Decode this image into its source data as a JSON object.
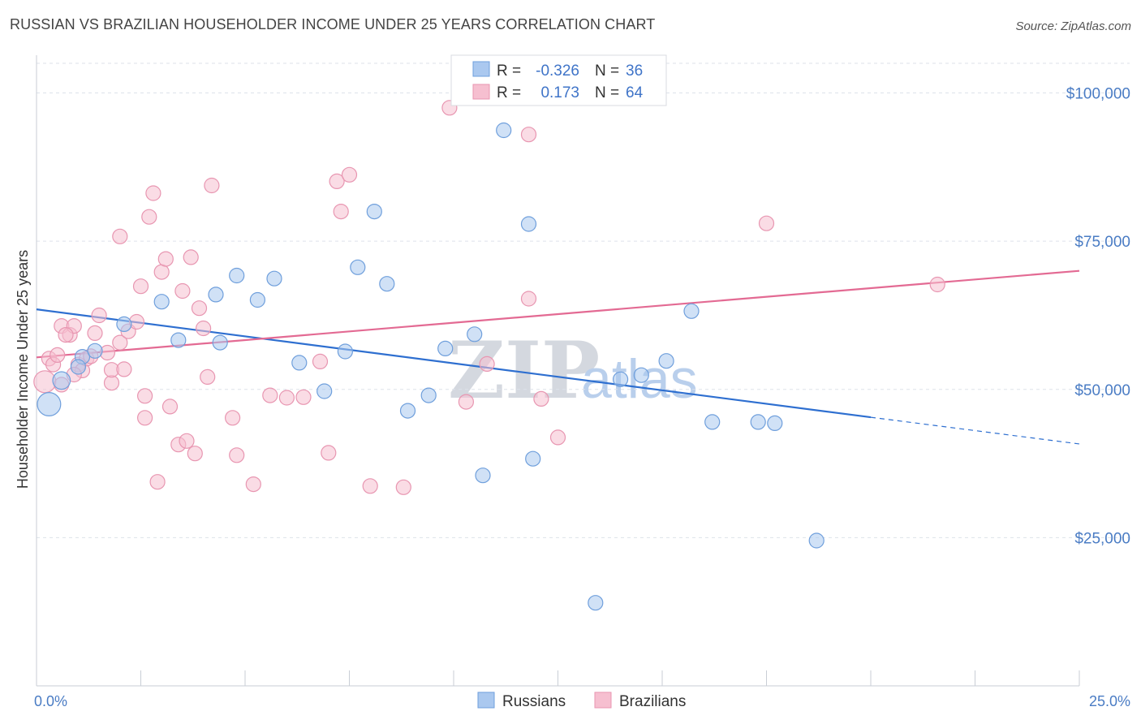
{
  "title": "RUSSIAN VS BRAZILIAN HOUSEHOLDER INCOME UNDER 25 YEARS CORRELATION CHART",
  "source": "Source: ZipAtlas.com",
  "watermark": {
    "zip": "ZIP",
    "atlas": "atlas"
  },
  "colors": {
    "russians_fill": "#aac8ef",
    "russians_stroke": "#6f9fdc",
    "russians_line": "#2e6fd0",
    "brazilians_fill": "#f6bfd0",
    "brazilians_stroke": "#e896b1",
    "brazilians_line": "#e36a93",
    "tick_label": "#4a7cc4",
    "grid": "#dde2ea"
  },
  "legend": {
    "rows": [
      {
        "r_label": "R =",
        "r_value": "-0.326",
        "n_label": "N =",
        "n_value": "36"
      },
      {
        "r_label": "R =",
        "r_value": "0.173",
        "n_label": "N =",
        "n_value": "64"
      }
    ]
  },
  "bottom_legend": [
    "Russians",
    "Brazilians"
  ],
  "chart_data": {
    "type": "scatter",
    "title": "RUSSIAN VS BRAZILIAN HOUSEHOLDER INCOME UNDER 25 YEARS CORRELATION CHART",
    "xlabel": "",
    "ylabel": "Householder Income Under 25 years",
    "xlim": [
      0,
      25
    ],
    "ylim": [
      0,
      105000
    ],
    "x_tick_labels": [
      "0.0%",
      "25.0%"
    ],
    "y_ticks": [
      25000,
      50000,
      75000,
      100000
    ],
    "y_tick_labels": [
      "$25,000",
      "$50,000",
      "$75,000",
      "$100,000"
    ],
    "grid": "horizontal dashed",
    "series": [
      {
        "name": "Russians",
        "r": -0.326,
        "n": 36,
        "trend": {
          "x0": 0,
          "y0": 63500,
          "x1": 20,
          "y1": 45300,
          "dash_to_x": 25,
          "dash_to_y": 40800
        },
        "points": [
          [
            0.3,
            47500,
            1.6
          ],
          [
            0.6,
            51500,
            1.2
          ],
          [
            1.1,
            55500,
            1.0
          ],
          [
            2.1,
            61000,
            1.0
          ],
          [
            1.4,
            56500,
            1.0
          ],
          [
            3.0,
            64800,
            1.0
          ],
          [
            3.4,
            58300,
            1.0
          ],
          [
            4.4,
            57900,
            1.0
          ],
          [
            4.3,
            66000,
            1.0
          ],
          [
            4.8,
            69200,
            1.0
          ],
          [
            5.3,
            65100,
            1.0
          ],
          [
            5.7,
            68700,
            1.0
          ],
          [
            6.3,
            54500,
            1.0
          ],
          [
            6.9,
            49700,
            1.0
          ],
          [
            7.4,
            56400,
            1.0
          ],
          [
            7.7,
            70600,
            1.0
          ],
          [
            8.1,
            80000,
            1.0
          ],
          [
            8.4,
            67800,
            1.0
          ],
          [
            8.9,
            46400,
            1.0
          ],
          [
            9.4,
            49000,
            1.0
          ],
          [
            9.8,
            56900,
            1.0
          ],
          [
            10.5,
            59300,
            1.0
          ],
          [
            10.7,
            35500,
            1.0
          ],
          [
            11.2,
            93700,
            1.0
          ],
          [
            11.9,
            38300,
            1.0
          ],
          [
            11.8,
            77900,
            1.0
          ],
          [
            13.4,
            14000,
            1.0
          ],
          [
            14.0,
            51700,
            1.0
          ],
          [
            14.5,
            52400,
            1.0
          ],
          [
            15.1,
            54800,
            1.0
          ],
          [
            15.7,
            63200,
            1.0
          ],
          [
            16.2,
            44500,
            1.0
          ],
          [
            17.3,
            44500,
            1.0
          ],
          [
            17.7,
            44300,
            1.0
          ],
          [
            18.7,
            24500,
            1.0
          ],
          [
            1.0,
            53800,
            1.0
          ]
        ]
      },
      {
        "name": "Brazilians",
        "r": 0.173,
        "n": 64,
        "trend": {
          "x0": 0,
          "y0": 55400,
          "x1": 25,
          "y1": 70000
        },
        "points": [
          [
            0.2,
            51300,
            1.5
          ],
          [
            0.3,
            55200,
            1.0
          ],
          [
            0.4,
            54200,
            1.0
          ],
          [
            0.5,
            55800,
            1.0
          ],
          [
            0.6,
            50800,
            1.0
          ],
          [
            0.6,
            60700,
            1.0
          ],
          [
            0.8,
            59200,
            1.0
          ],
          [
            0.9,
            60700,
            1.0
          ],
          [
            1.0,
            54200,
            1.0
          ],
          [
            1.1,
            53200,
            1.0
          ],
          [
            1.2,
            55200,
            1.0
          ],
          [
            1.4,
            59500,
            1.0
          ],
          [
            1.5,
            62500,
            1.0
          ],
          [
            1.7,
            56200,
            1.0
          ],
          [
            1.8,
            51100,
            1.0
          ],
          [
            1.8,
            53300,
            1.0
          ],
          [
            2.0,
            57900,
            1.0
          ],
          [
            2.0,
            75800,
            1.0
          ],
          [
            2.1,
            53400,
            1.0
          ],
          [
            2.2,
            59800,
            1.0
          ],
          [
            2.4,
            61400,
            1.0
          ],
          [
            2.5,
            67400,
            1.0
          ],
          [
            2.6,
            48900,
            1.0
          ],
          [
            2.6,
            45200,
            1.0
          ],
          [
            2.7,
            79100,
            1.0
          ],
          [
            2.8,
            83100,
            1.0
          ],
          [
            2.9,
            34400,
            1.0
          ],
          [
            3.0,
            69800,
            1.0
          ],
          [
            3.1,
            72000,
            1.0
          ],
          [
            3.2,
            47100,
            1.0
          ],
          [
            3.4,
            40700,
            1.0
          ],
          [
            3.5,
            66600,
            1.0
          ],
          [
            3.6,
            41300,
            1.0
          ],
          [
            3.7,
            72300,
            1.0
          ],
          [
            3.8,
            39200,
            1.0
          ],
          [
            3.9,
            63700,
            1.0
          ],
          [
            4.0,
            60300,
            1.0
          ],
          [
            4.1,
            52100,
            1.0
          ],
          [
            4.2,
            84400,
            1.0
          ],
          [
            4.7,
            45200,
            1.0
          ],
          [
            4.8,
            38900,
            1.0
          ],
          [
            5.2,
            34000,
            1.0
          ],
          [
            5.6,
            49000,
            1.0
          ],
          [
            6.0,
            48600,
            1.0
          ],
          [
            6.4,
            48700,
            1.0
          ],
          [
            6.8,
            54700,
            1.0
          ],
          [
            7.0,
            39300,
            1.0
          ],
          [
            7.2,
            85100,
            1.0
          ],
          [
            7.3,
            80000,
            1.0
          ],
          [
            7.5,
            86200,
            1.0
          ],
          [
            8.0,
            33700,
            1.0
          ],
          [
            8.8,
            33500,
            1.0
          ],
          [
            9.9,
            97500,
            1.0
          ],
          [
            10.3,
            47900,
            1.0
          ],
          [
            10.8,
            54300,
            1.0
          ],
          [
            11.8,
            65300,
            1.0
          ],
          [
            11.8,
            93000,
            1.0
          ],
          [
            12.1,
            48400,
            1.0
          ],
          [
            12.5,
            41900,
            1.0
          ],
          [
            17.5,
            78000,
            1.0
          ],
          [
            21.6,
            67700,
            1.0
          ],
          [
            0.9,
            52500,
            1.0
          ],
          [
            1.3,
            55600,
            1.0
          ],
          [
            0.7,
            59200,
            1.0
          ]
        ]
      }
    ]
  }
}
